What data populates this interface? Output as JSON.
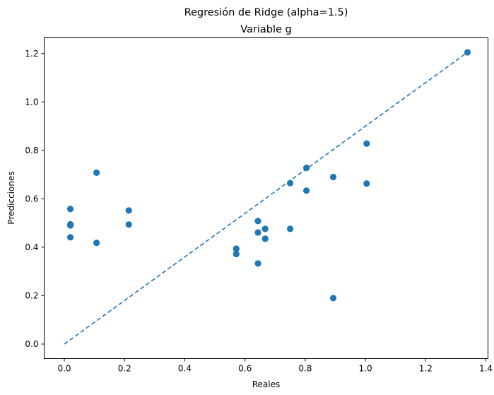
{
  "chart_data": {
    "type": "scatter",
    "title": "Regresión de Ridge (alpha=1.5)",
    "subtitle": "Variable g",
    "xlabel": "Reales",
    "ylabel": "Predicciones",
    "xlim": [
      -0.067,
      1.407
    ],
    "ylim": [
      -0.06,
      1.265
    ],
    "xticks": [
      0.0,
      0.2,
      0.4,
      0.6,
      0.8,
      1.0,
      1.2,
      1.4
    ],
    "xtick_labels": [
      "0.0",
      "0.2",
      "0.4",
      "0.6",
      "0.8",
      "1.0",
      "1.2",
      "1.4"
    ],
    "yticks": [
      0.0,
      0.2,
      0.4,
      0.6,
      0.8,
      1.0,
      1.2
    ],
    "ytick_labels": [
      "0.0",
      "0.2",
      "0.4",
      "0.6",
      "0.8",
      "1.0",
      "1.2"
    ],
    "grid": false,
    "series": [
      {
        "name": "points",
        "color": "#1f77b4",
        "x": [
          0.02,
          0.02,
          0.02,
          0.02,
          0.107,
          0.107,
          0.214,
          0.214,
          0.571,
          0.571,
          0.643,
          0.643,
          0.643,
          0.667,
          0.667,
          0.75,
          0.75,
          0.804,
          0.804,
          0.893,
          0.893,
          1.004,
          1.004,
          1.339
        ],
        "y": [
          0.558,
          0.495,
          0.49,
          0.441,
          0.708,
          0.418,
          0.552,
          0.494,
          0.394,
          0.372,
          0.508,
          0.461,
          0.333,
          0.476,
          0.435,
          0.665,
          0.476,
          0.728,
          0.634,
          0.69,
          0.19,
          0.828,
          0.663,
          1.205
        ]
      }
    ],
    "reference_line": {
      "style": "dashed",
      "color": "#1f77b4",
      "x": [
        0.0,
        1.339
      ],
      "y": [
        0.0,
        1.205
      ]
    }
  }
}
